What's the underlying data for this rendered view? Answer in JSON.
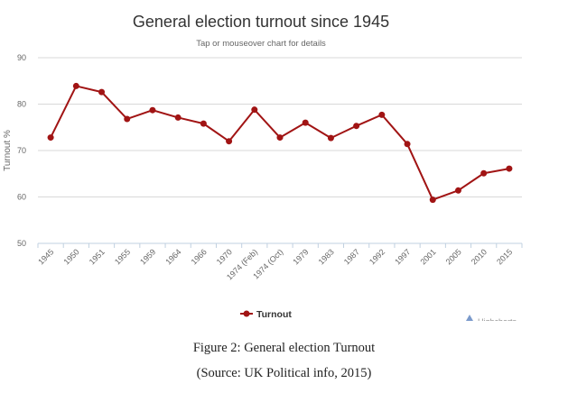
{
  "chart_data": {
    "type": "line",
    "title": "General election turnout since 1945",
    "subtitle": "Tap or mouseover chart for details",
    "ylabel": "Turnout %",
    "xlabel": "",
    "ylim": [
      50,
      90
    ],
    "yticks": [
      50,
      60,
      70,
      80,
      90
    ],
    "grid": true,
    "legend_position": "bottom",
    "categories": [
      "1945",
      "1950",
      "1951",
      "1955",
      "1959",
      "1964",
      "1966",
      "1970",
      "1974 (Feb)",
      "1974 (Oct)",
      "1979",
      "1983",
      "1987",
      "1992",
      "1997",
      "2001",
      "2005",
      "2010",
      "2015"
    ],
    "series": [
      {
        "name": "Turnout",
        "color": "#a11414",
        "values": [
          72.8,
          83.9,
          82.6,
          76.8,
          78.7,
          77.1,
          75.8,
          72.0,
          78.8,
          72.8,
          76.0,
          72.7,
          75.3,
          77.7,
          71.4,
          59.4,
          61.4,
          65.1,
          66.1
        ]
      }
    ]
  },
  "credits": "Highcharts",
  "caption": {
    "line1": "Figure 2: General election Turnout",
    "line2": "(Source: UK Political info, 2015)"
  }
}
